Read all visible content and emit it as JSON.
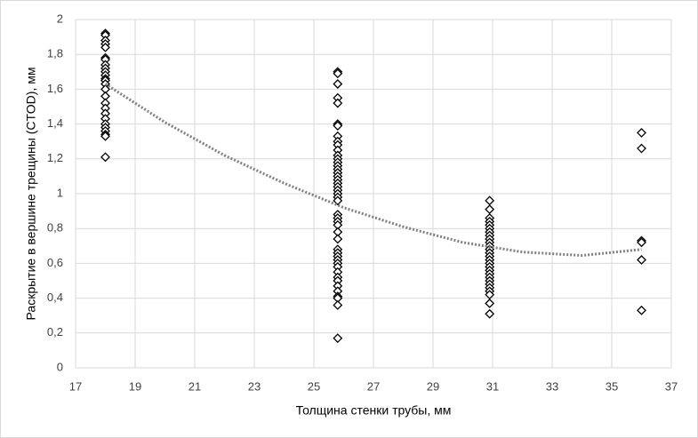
{
  "chart_data": {
    "type": "scatter",
    "x_label": "Толщина стенки трубы, мм",
    "y_label": "Раскрытие в вершине трещины (CTOD), мм",
    "color": "#000000",
    "marker": "diamond",
    "grid": true,
    "xlim": [
      17,
      37
    ],
    "ylim": [
      0,
      2
    ],
    "xticks": [
      17,
      19,
      21,
      23,
      25,
      27,
      29,
      31,
      33,
      35,
      37
    ],
    "yticks": [
      0,
      {
        "value": 0.2,
        "label": "0,2"
      },
      {
        "value": 0.4,
        "label": "0,4"
      },
      {
        "value": 0.6,
        "label": "0,6"
      },
      {
        "value": 0.8,
        "label": "0,8"
      },
      1,
      {
        "value": 1.2,
        "label": "1,2"
      },
      {
        "value": 1.4,
        "label": "1,4"
      },
      {
        "value": 1.6,
        "label": "1,6"
      },
      {
        "value": 1.8,
        "label": "1,8"
      },
      2
    ],
    "x": [
      18,
      18,
      18,
      18,
      18,
      18,
      18,
      18,
      18,
      18,
      18,
      18,
      18,
      18,
      18,
      18,
      18,
      18,
      18,
      18,
      18,
      18,
      18,
      18,
      18,
      18,
      25.8,
      25.8,
      25.8,
      25.8,
      25.8,
      25.8,
      25.8,
      25.8,
      25.8,
      25.8,
      25.8,
      25.8,
      25.8,
      25.8,
      25.8,
      25.8,
      25.8,
      25.8,
      25.8,
      25.8,
      25.8,
      25.8,
      25.8,
      25.8,
      25.8,
      25.8,
      25.8,
      25.8,
      25.8,
      25.8,
      25.8,
      25.8,
      25.8,
      25.8,
      25.8,
      25.8,
      25.8,
      25.8,
      25.8,
      25.8,
      25.8,
      25.8,
      25.8,
      25.8,
      25.8,
      25.8,
      30.9,
      30.9,
      30.9,
      30.9,
      30.9,
      30.9,
      30.9,
      30.9,
      30.9,
      30.9,
      30.9,
      30.9,
      30.9,
      30.9,
      30.9,
      30.9,
      30.9,
      30.9,
      30.9,
      30.9,
      30.9,
      30.9,
      30.9,
      30.9,
      30.9,
      30.9,
      30.9,
      36,
      36,
      36,
      36,
      36,
      36
    ],
    "values": [
      1.92,
      1.91,
      1.88,
      1.86,
      1.84,
      1.78,
      1.77,
      1.74,
      1.72,
      1.7,
      1.68,
      1.66,
      1.65,
      1.63,
      1.6,
      1.56,
      1.52,
      1.49,
      1.46,
      1.43,
      1.4,
      1.38,
      1.36,
      1.34,
      1.33,
      1.21,
      1.7,
      1.69,
      1.63,
      1.55,
      1.52,
      1.4,
      1.39,
      1.33,
      1.3,
      1.28,
      1.25,
      1.22,
      1.2,
      1.18,
      1.16,
      1.14,
      1.12,
      1.1,
      1.08,
      1.06,
      1.04,
      1.02,
      1.0,
      0.98,
      0.96,
      0.88,
      0.86,
      0.84,
      0.82,
      0.78,
      0.74,
      0.68,
      0.66,
      0.64,
      0.62,
      0.6,
      0.58,
      0.55,
      0.52,
      0.5,
      0.47,
      0.44,
      0.41,
      0.4,
      0.36,
      0.17,
      0.96,
      0.91,
      0.86,
      0.84,
      0.82,
      0.8,
      0.78,
      0.76,
      0.74,
      0.72,
      0.7,
      0.68,
      0.66,
      0.64,
      0.62,
      0.6,
      0.58,
      0.56,
      0.54,
      0.52,
      0.5,
      0.48,
      0.46,
      0.44,
      0.42,
      0.37,
      0.31,
      1.35,
      1.26,
      0.73,
      0.72,
      0.62,
      0.33
    ],
    "trendline": {
      "color": "#808080",
      "x": [
        18,
        20,
        22,
        24,
        26,
        28,
        30,
        32,
        34,
        36
      ],
      "values": [
        1.63,
        1.41,
        1.22,
        1.06,
        0.92,
        0.81,
        0.72,
        0.665,
        0.645,
        0.68
      ]
    }
  }
}
